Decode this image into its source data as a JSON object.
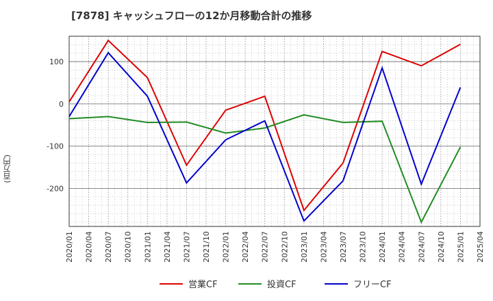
{
  "chart_data": {
    "type": "line",
    "title": "[7878]  キャッシュフローの12か月移動合計の推移",
    "ylabel": "(百万円)",
    "xlabel": "",
    "ylim": [
      -290,
      160
    ],
    "yticks": [
      100,
      0,
      -100,
      -200
    ],
    "categories": [
      "2020/01",
      "2020/04",
      "2020/07",
      "2020/10",
      "2021/01",
      "2021/04",
      "2021/07",
      "2021/10",
      "2022/01",
      "2022/04",
      "2022/07",
      "2022/10",
      "2023/01",
      "2023/04",
      "2023/07",
      "2023/10",
      "2024/01",
      "2024/04",
      "2024/07",
      "2024/10",
      "2025/01",
      "2025/04"
    ],
    "legend_position": "bottom",
    "grid": true,
    "series": [
      {
        "name": "営業CF",
        "color": "#dd0000",
        "x": [
          "2020/01",
          "2020/07",
          "2021/01",
          "2021/07",
          "2022/01",
          "2022/07",
          "2023/01",
          "2023/07",
          "2024/01",
          "2024/07",
          "2025/01"
        ],
        "values": [
          5,
          150,
          62,
          -145,
          -15,
          18,
          -252,
          -140,
          124,
          90,
          141
        ]
      },
      {
        "name": "投資CF",
        "color": "#228b22",
        "x": [
          "2020/01",
          "2020/07",
          "2021/01",
          "2021/07",
          "2022/01",
          "2022/07",
          "2023/01",
          "2023/07",
          "2024/01",
          "2024/07",
          "2025/01"
        ],
        "values": [
          -35,
          -30,
          -44,
          -43,
          -69,
          -57,
          -26,
          -44,
          -41,
          -280,
          -102
        ]
      },
      {
        "name": "フリーCF",
        "color": "#0000cc",
        "x": [
          "2020/01",
          "2020/07",
          "2021/01",
          "2021/07",
          "2022/01",
          "2022/07",
          "2023/01",
          "2023/07",
          "2024/01",
          "2024/07",
          "2025/01"
        ],
        "values": [
          -30,
          121,
          18,
          -187,
          -85,
          -40,
          -277,
          -182,
          85,
          -190,
          39
        ]
      }
    ]
  }
}
